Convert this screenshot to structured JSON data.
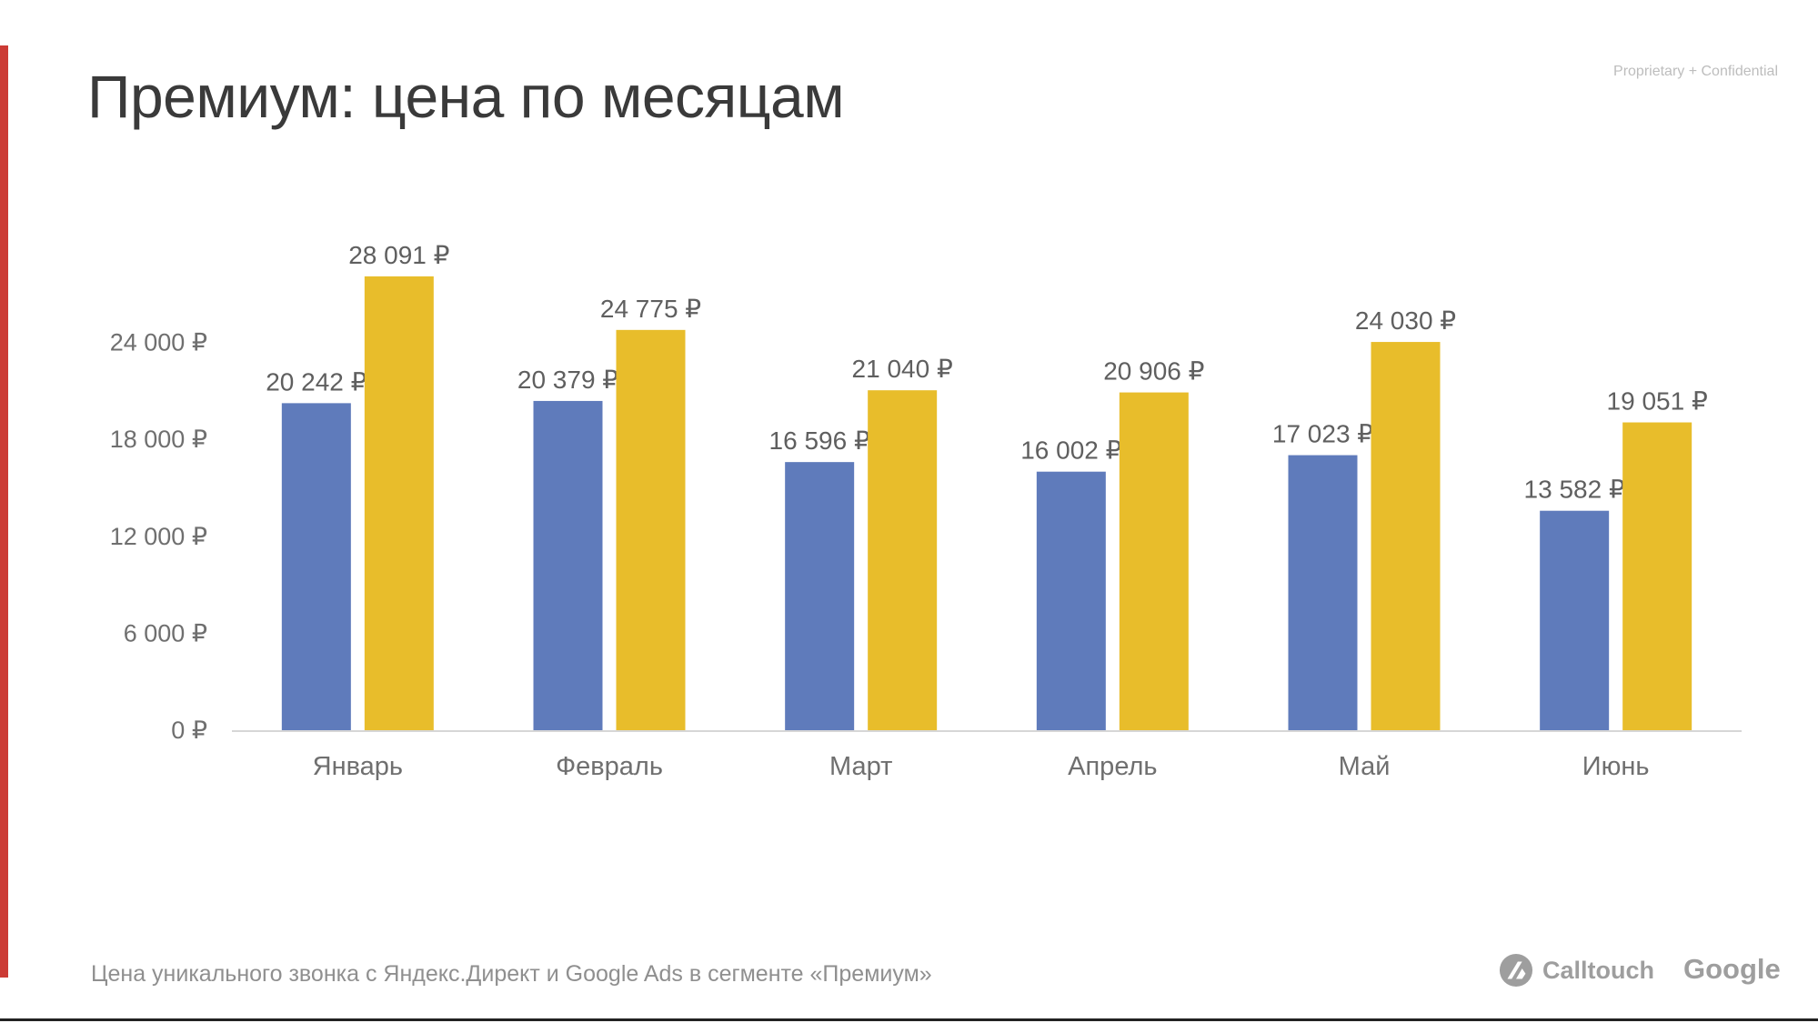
{
  "slide": {
    "title": "Премиум: цена по месяцам",
    "confidential": "Proprietary + Confidential",
    "footnote": "Цена уникального звонка с Яндекс.Директ и Google Ads в сегменте «Премиум»",
    "logos": {
      "calltouch": "Calltouch",
      "google": "Google"
    },
    "accent_color": "#cc3b35"
  },
  "chart_data": {
    "type": "bar",
    "categories": [
      "Январь",
      "Февраль",
      "Март",
      "Апрель",
      "Май",
      "Июнь"
    ],
    "series": [
      {
        "color": "#5f7bbb",
        "values": [
          20242,
          20379,
          16596,
          16002,
          17023,
          13582
        ],
        "labels": [
          "20 242 ₽",
          "20 379 ₽",
          "16 596 ₽",
          "16 002 ₽",
          "17 023 ₽",
          "13 582 ₽"
        ]
      },
      {
        "color": "#e8bd2b",
        "values": [
          28091,
          24775,
          21040,
          20906,
          24030,
          19051
        ],
        "labels": [
          "28 091 ₽",
          "24 775 ₽",
          "21 040 ₽",
          "20 906 ₽",
          "24 030 ₽",
          "19 051 ₽"
        ]
      }
    ],
    "yticks": [
      0,
      6000,
      12000,
      18000,
      24000
    ],
    "ytick_labels": [
      "0 ₽",
      "6 000 ₽",
      "12 000 ₽",
      "18 000 ₽",
      "24 000 ₽"
    ],
    "ylim": [
      0,
      30000
    ],
    "grid": false,
    "legend": "none"
  }
}
